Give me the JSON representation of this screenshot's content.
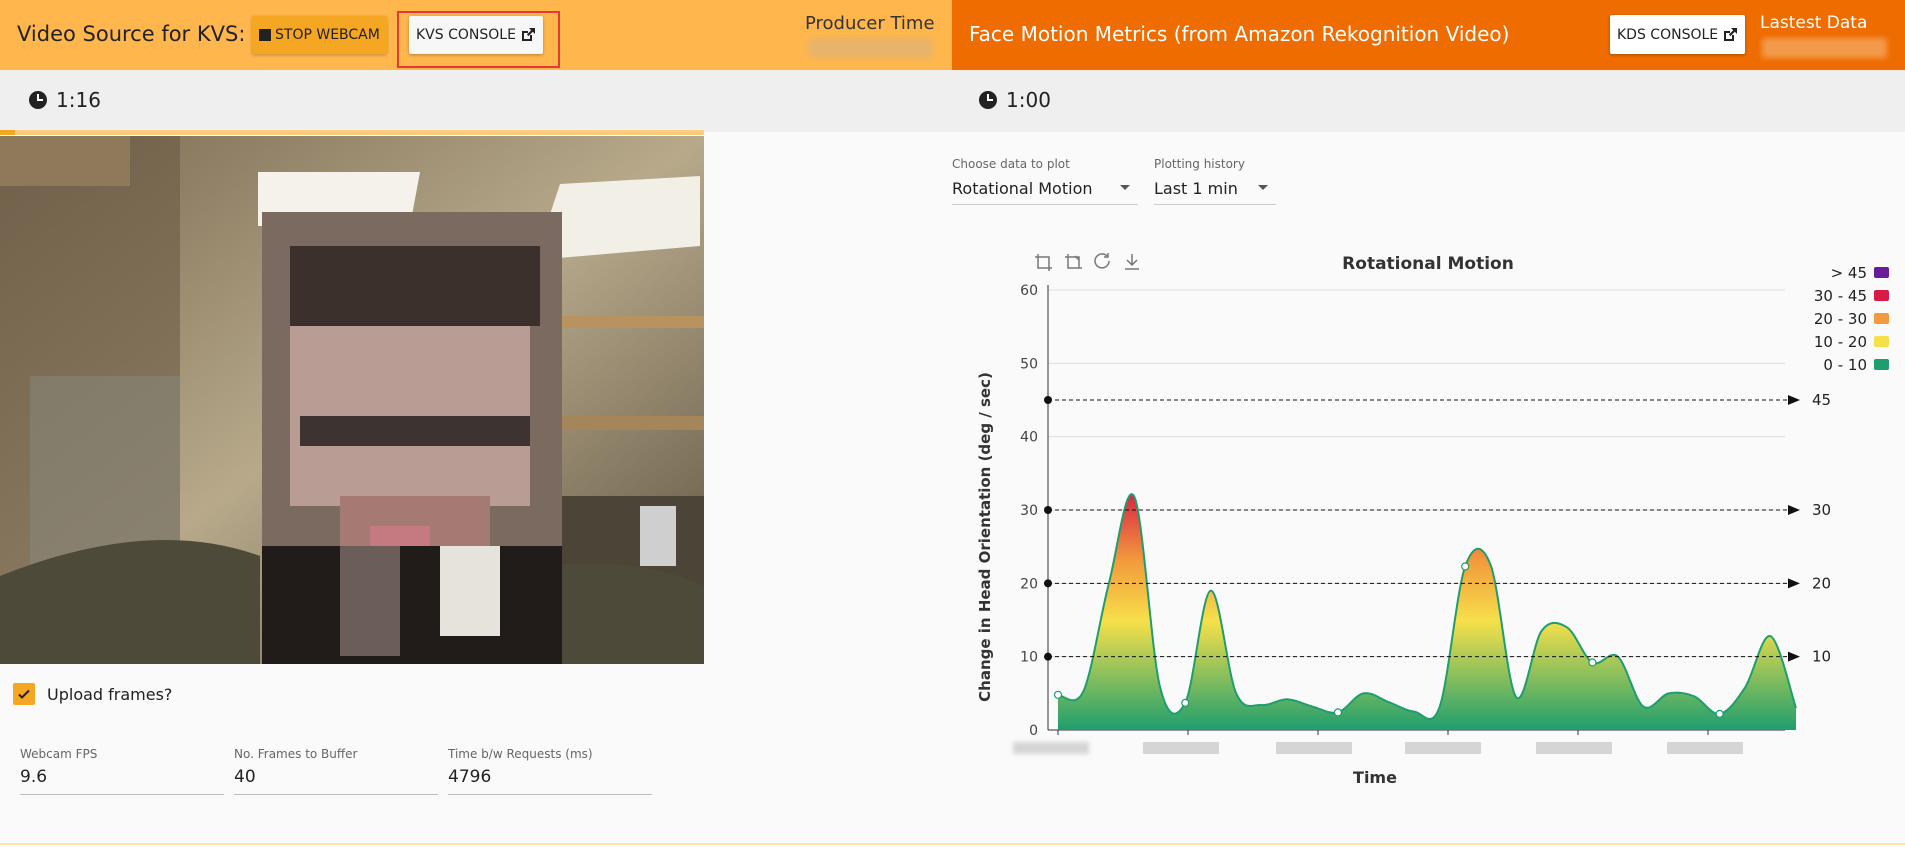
{
  "left_header": {
    "title": "Video Source for KVS:",
    "stop_button": "STOP WEBCAM",
    "kvs_button": "KVS CONSOLE",
    "producer_time_label": "Producer Time"
  },
  "right_header": {
    "title": "Face Motion Metrics (from Amazon Rekognition Video)",
    "kds_button": "KDS CONSOLE",
    "latest_data_label": "Lastest Data"
  },
  "timers": {
    "left": "1:16",
    "right": "1:00"
  },
  "upload": {
    "label": "Upload frames?",
    "checked": true
  },
  "fields": [
    {
      "label": "Webcam FPS",
      "value": "9.6"
    },
    {
      "label": "No. Frames to Buffer",
      "value": "40"
    },
    {
      "label": "Time b/w Requests (ms)",
      "value": "4796"
    }
  ],
  "selects": {
    "data": {
      "label": "Choose data to plot",
      "value": "Rotational Motion"
    },
    "history": {
      "label": "Plotting history",
      "value": "Last 1 min"
    }
  },
  "colors": {
    "left_header": "#ffb74d",
    "right_header": "#ef6c00",
    "accent": "#f5a623"
  },
  "chart_data": {
    "type": "area",
    "title": "Rotational Motion",
    "xlabel": "Time",
    "ylabel": "Change  in  Head Orientation  (deg / sec)",
    "ylim": [
      0,
      60
    ],
    "yticks": [
      "0",
      "10",
      "20",
      "30",
      "40",
      "50",
      "60"
    ],
    "thresholds": [
      {
        "value": 10,
        "label": "10"
      },
      {
        "value": 20,
        "label": "20"
      },
      {
        "value": 30,
        "label": "30"
      },
      {
        "value": 45,
        "label": "45"
      }
    ],
    "legend": [
      {
        "label": "> 45",
        "color": "#6a1b9a"
      },
      {
        "label": "30 - 45",
        "color": "#d81b46"
      },
      {
        "label": "20 - 30",
        "color": "#f29a3c"
      },
      {
        "label": "10 - 20",
        "color": "#f6e04a"
      },
      {
        "label": "0 - 10",
        "color": "#1e9e6e"
      }
    ],
    "legend_position": "top-right",
    "values": [
      4.8,
      5.3,
      20,
      31.8,
      6,
      3.7,
      19,
      5,
      3.4,
      4.2,
      3.2,
      2.4,
      5,
      3.8,
      2.5,
      3.2,
      22.3,
      22.5,
      4.5,
      13.5,
      14,
      9.2,
      10,
      3.2,
      5,
      4.6,
      2.2,
      5.8,
      12.8,
      3
    ]
  }
}
